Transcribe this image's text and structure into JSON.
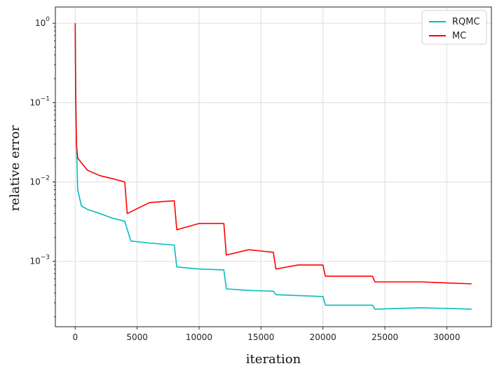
{
  "chart_data": {
    "type": "line",
    "xlabel": "iteration",
    "ylabel": "relative error",
    "yscale": "log",
    "xlim": [
      -1600,
      33600
    ],
    "ylim": [
      0.00015,
      1.6
    ],
    "x_ticks": [
      0,
      5000,
      10000,
      15000,
      20000,
      25000,
      30000
    ],
    "y_ticks": [
      {
        "value": 1,
        "base": "10",
        "exp": "0"
      },
      {
        "value": 0.1,
        "base": "10",
        "exp": "−1"
      },
      {
        "value": 0.01,
        "base": "10",
        "exp": "−2"
      },
      {
        "value": 0.001,
        "base": "10",
        "exp": "−3"
      }
    ],
    "grid": true,
    "legend_position": "top-right",
    "series": [
      {
        "name": "RQMC",
        "color": "#00bfbf",
        "points": [
          [
            0,
            1.0
          ],
          [
            40,
            0.15
          ],
          [
            100,
            0.03
          ],
          [
            200,
            0.008
          ],
          [
            500,
            0.005
          ],
          [
            1000,
            0.0045
          ],
          [
            2000,
            0.004
          ],
          [
            3000,
            0.0035
          ],
          [
            4000,
            0.0032
          ],
          [
            4500,
            0.0018
          ],
          [
            6000,
            0.0017
          ],
          [
            8000,
            0.0016
          ],
          [
            8200,
            0.00085
          ],
          [
            10000,
            0.0008
          ],
          [
            12000,
            0.00078
          ],
          [
            12200,
            0.00045
          ],
          [
            14000,
            0.00043
          ],
          [
            16000,
            0.00042
          ],
          [
            16200,
            0.00038
          ],
          [
            18000,
            0.00037
          ],
          [
            20000,
            0.00036
          ],
          [
            20200,
            0.00028
          ],
          [
            22000,
            0.00028
          ],
          [
            24000,
            0.00028
          ],
          [
            24200,
            0.00025
          ],
          [
            28000,
            0.00026
          ],
          [
            32000,
            0.00025
          ]
        ]
      },
      {
        "name": "MC",
        "color": "#ff0000",
        "points": [
          [
            0,
            1.0
          ],
          [
            40,
            0.12
          ],
          [
            100,
            0.03
          ],
          [
            200,
            0.02
          ],
          [
            1000,
            0.014
          ],
          [
            2000,
            0.012
          ],
          [
            3000,
            0.011
          ],
          [
            4000,
            0.01
          ],
          [
            4200,
            0.004
          ],
          [
            6000,
            0.0055
          ],
          [
            8000,
            0.0058
          ],
          [
            8200,
            0.0025
          ],
          [
            10000,
            0.003
          ],
          [
            12000,
            0.003
          ],
          [
            12200,
            0.0012
          ],
          [
            14000,
            0.0014
          ],
          [
            16000,
            0.0013
          ],
          [
            16200,
            0.0008
          ],
          [
            18000,
            0.0009
          ],
          [
            20000,
            0.0009
          ],
          [
            20200,
            0.00065
          ],
          [
            24000,
            0.00065
          ],
          [
            24200,
            0.00055
          ],
          [
            28000,
            0.00055
          ],
          [
            32000,
            0.00052
          ]
        ]
      }
    ]
  }
}
